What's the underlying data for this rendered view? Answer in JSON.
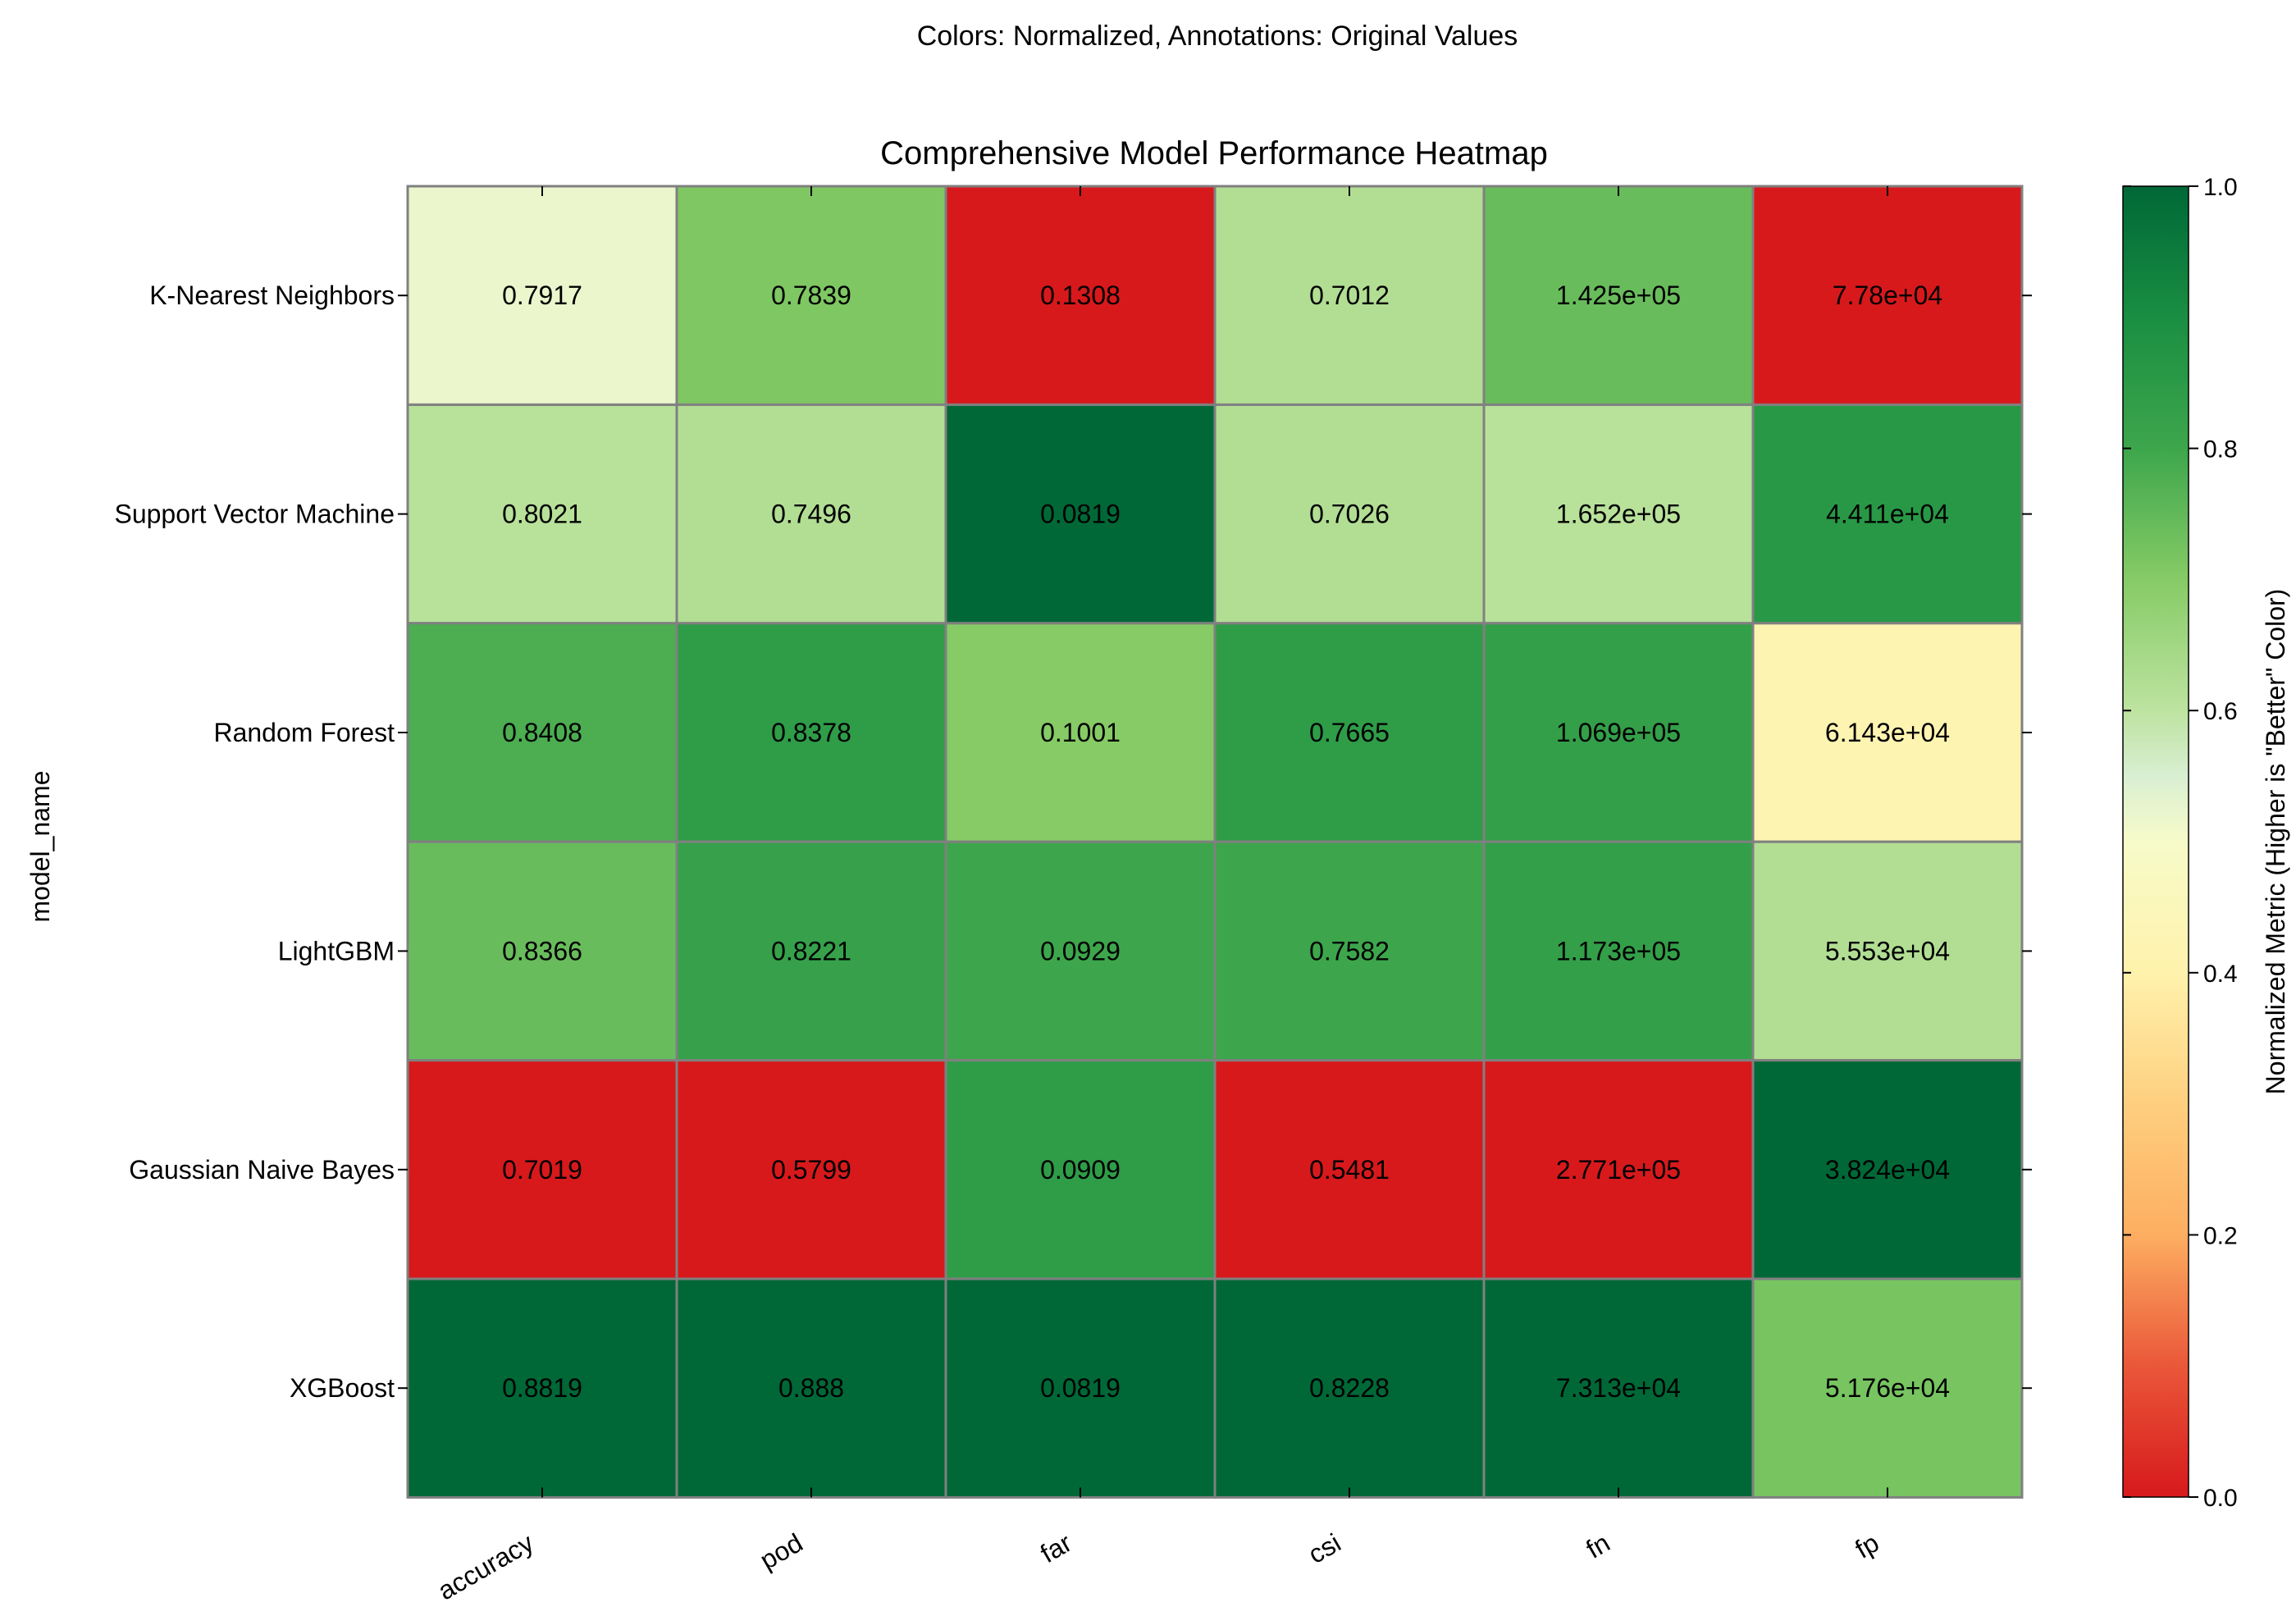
{
  "chart_data": {
    "type": "heatmap",
    "suptitle": "Colors: Normalized, Annotations: Original Values",
    "title": "Comprehensive Model Performance Heatmap",
    "xlabel": "",
    "ylabel": "model_name",
    "x_categories": [
      "accuracy",
      "pod",
      "far",
      "csi",
      "fn",
      "fp"
    ],
    "y_categories": [
      "K-Nearest Neighbors",
      "Support Vector Machine",
      "Random Forest",
      "LightGBM",
      "Gaussian Naive Bayes",
      "XGBoost"
    ],
    "annotations": [
      [
        "0.7917",
        "0.7839",
        "0.1308",
        "0.7012",
        "1.425e+05",
        "7.78e+04"
      ],
      [
        "0.8021",
        "0.7496",
        "0.0819",
        "0.7026",
        "1.652e+05",
        "4.411e+04"
      ],
      [
        "0.8408",
        "0.8378",
        "0.1001",
        "0.7665",
        "1.069e+05",
        "6.143e+04"
      ],
      [
        "0.8366",
        "0.8221",
        "0.0929",
        "0.7582",
        "1.173e+05",
        "5.553e+04"
      ],
      [
        "0.7019",
        "0.5799",
        "0.0909",
        "0.5481",
        "2.771e+05",
        "3.824e+04"
      ],
      [
        "0.8819",
        "0.888",
        "0.0819",
        "0.8228",
        "7.313e+04",
        "5.176e+04"
      ]
    ],
    "normalized": [
      [
        0.52,
        0.71,
        0.0,
        0.62,
        0.74,
        0.0
      ],
      [
        0.61,
        0.62,
        1.0,
        0.62,
        0.61,
        0.86
      ],
      [
        0.78,
        0.84,
        0.7,
        0.84,
        0.83,
        0.42
      ],
      [
        0.74,
        0.82,
        0.8,
        0.8,
        0.83,
        0.62
      ],
      [
        0.0,
        0.0,
        0.84,
        0.0,
        0.0,
        1.0
      ],
      [
        1.0,
        1.0,
        1.0,
        1.0,
        1.0,
        0.72
      ]
    ],
    "colorbar": {
      "label": "Normalized Metric (Higher is \"Better\" Color)",
      "range": [
        0,
        1
      ],
      "ticks": [
        "0.0",
        "0.2",
        "0.4",
        "0.6",
        "0.8",
        "1.0"
      ],
      "colormap": "RdYlGn"
    },
    "grid": false
  }
}
